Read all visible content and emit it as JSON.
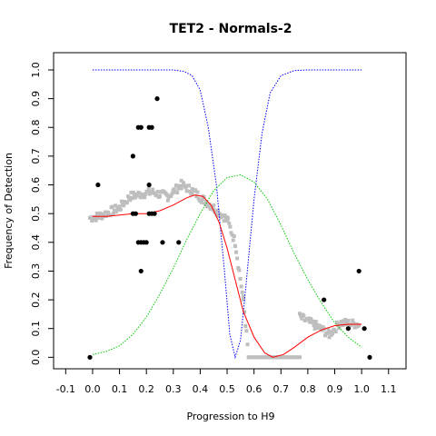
{
  "chart_data": {
    "type": "scatter",
    "title": "TET2 - Normals-2",
    "xlabel": "Progression to H9",
    "ylabel": "Frequency of Detection",
    "xlim": [
      -0.145,
      1.165
    ],
    "ylim": [
      -0.04,
      1.06
    ],
    "x_ticks": [
      -0.1,
      0.0,
      0.1,
      0.2,
      0.3,
      0.4,
      0.5,
      0.6,
      0.7,
      0.8,
      0.9,
      1.0,
      1.1
    ],
    "x_tick_labels": [
      "-0.1",
      "0.0",
      "0.1",
      "0.2",
      "0.3",
      "0.4",
      "0.5",
      "0.6",
      "0.7",
      "0.8",
      "0.9",
      "1.0",
      "1.1"
    ],
    "y_ticks": [
      0.0,
      0.1,
      0.2,
      0.3,
      0.4,
      0.5,
      0.6,
      0.7,
      0.8,
      0.9,
      1.0
    ],
    "y_tick_labels": [
      "0.0",
      "0.1",
      "0.2",
      "0.3",
      "0.4",
      "0.5",
      "0.6",
      "0.7",
      "0.8",
      "0.9",
      "1.0"
    ],
    "grid": false,
    "colors": {
      "black_points": "#000000",
      "gray_points": "#bebebe",
      "red_curve": "#ff0000",
      "blue_curve": "#0000ff",
      "green_curve": "#00cc00"
    },
    "black_points": [
      [
        -0.01,
        0.0
      ],
      [
        0.02,
        0.6
      ],
      [
        0.15,
        0.7
      ],
      [
        0.15,
        0.5
      ],
      [
        0.16,
        0.5
      ],
      [
        0.17,
        0.8
      ],
      [
        0.18,
        0.8
      ],
      [
        0.17,
        0.4
      ],
      [
        0.18,
        0.4
      ],
      [
        0.19,
        0.4
      ],
      [
        0.2,
        0.4
      ],
      [
        0.18,
        0.3
      ],
      [
        0.21,
        0.8
      ],
      [
        0.22,
        0.8
      ],
      [
        0.21,
        0.6
      ],
      [
        0.21,
        0.5
      ],
      [
        0.22,
        0.5
      ],
      [
        0.23,
        0.5
      ],
      [
        0.24,
        0.9
      ],
      [
        0.26,
        0.4
      ],
      [
        0.32,
        0.4
      ],
      [
        0.86,
        0.2
      ],
      [
        0.95,
        0.1
      ],
      [
        0.99,
        0.3
      ],
      [
        1.01,
        0.1
      ],
      [
        1.03,
        0.0
      ]
    ],
    "gray_segments": [
      {
        "x0": -0.01,
        "x1": 0.02,
        "y0": 0.485,
        "y1": 0.49
      },
      {
        "x0": 0.02,
        "x1": 0.1,
        "y0": 0.49,
        "y1": 0.52
      },
      {
        "x0": 0.1,
        "x1": 0.14,
        "y0": 0.52,
        "y1": 0.56
      },
      {
        "x0": 0.14,
        "x1": 0.22,
        "y0": 0.56,
        "y1": 0.575
      },
      {
        "x0": 0.22,
        "x1": 0.28,
        "y0": 0.575,
        "y1": 0.56
      },
      {
        "x0": 0.28,
        "x1": 0.33,
        "y0": 0.56,
        "y1": 0.6
      },
      {
        "x0": 0.33,
        "x1": 0.37,
        "y0": 0.6,
        "y1": 0.58
      },
      {
        "x0": 0.37,
        "x1": 0.41,
        "y0": 0.58,
        "y1": 0.55
      },
      {
        "x0": 0.41,
        "x1": 0.45,
        "y0": 0.55,
        "y1": 0.52
      },
      {
        "x0": 0.45,
        "x1": 0.5,
        "y0": 0.52,
        "y1": 0.48
      },
      {
        "x0": 0.5,
        "x1": 0.53,
        "y0": 0.48,
        "y1": 0.4
      },
      {
        "x0": 0.53,
        "x1": 0.56,
        "y0": 0.4,
        "y1": 0.2
      },
      {
        "x0": 0.56,
        "x1": 0.58,
        "y0": 0.2,
        "y1": 0.0
      },
      {
        "x0": 0.58,
        "x1": 0.77,
        "y0": 0.0,
        "y1": 0.0
      },
      {
        "x0": 0.77,
        "x1": 0.83,
        "y0": 0.14,
        "y1": 0.11
      },
      {
        "x0": 0.83,
        "x1": 0.88,
        "y0": 0.11,
        "y1": 0.08
      },
      {
        "x0": 0.88,
        "x1": 0.92,
        "y0": 0.08,
        "y1": 0.12
      },
      {
        "x0": 0.92,
        "x1": 0.99,
        "y0": 0.12,
        "y1": 0.115
      }
    ],
    "red_curve": [
      [
        0.0,
        0.49
      ],
      [
        0.05,
        0.49
      ],
      [
        0.1,
        0.495
      ],
      [
        0.15,
        0.5
      ],
      [
        0.2,
        0.5
      ],
      [
        0.25,
        0.51
      ],
      [
        0.3,
        0.53
      ],
      [
        0.35,
        0.555
      ],
      [
        0.38,
        0.565
      ],
      [
        0.41,
        0.56
      ],
      [
        0.44,
        0.53
      ],
      [
        0.47,
        0.47
      ],
      [
        0.5,
        0.38
      ],
      [
        0.53,
        0.27
      ],
      [
        0.56,
        0.16
      ],
      [
        0.6,
        0.07
      ],
      [
        0.64,
        0.015
      ],
      [
        0.67,
        0.0
      ],
      [
        0.71,
        0.01
      ],
      [
        0.75,
        0.035
      ],
      [
        0.8,
        0.07
      ],
      [
        0.85,
        0.095
      ],
      [
        0.9,
        0.11
      ],
      [
        0.95,
        0.115
      ],
      [
        1.0,
        0.115
      ]
    ],
    "blue_curve": [
      [
        0.0,
        1.0
      ],
      [
        0.1,
        1.0
      ],
      [
        0.2,
        1.0
      ],
      [
        0.3,
        1.0
      ],
      [
        0.34,
        0.995
      ],
      [
        0.37,
        0.98
      ],
      [
        0.4,
        0.93
      ],
      [
        0.43,
        0.8
      ],
      [
        0.46,
        0.6
      ],
      [
        0.49,
        0.3
      ],
      [
        0.51,
        0.08
      ],
      [
        0.53,
        0.0
      ],
      [
        0.55,
        0.06
      ],
      [
        0.57,
        0.25
      ],
      [
        0.6,
        0.55
      ],
      [
        0.63,
        0.78
      ],
      [
        0.66,
        0.92
      ],
      [
        0.7,
        0.98
      ],
      [
        0.75,
        0.998
      ],
      [
        0.8,
        1.0
      ],
      [
        0.9,
        1.0
      ],
      [
        1.0,
        1.0
      ]
    ],
    "green_curve": [
      [
        0.0,
        0.01
      ],
      [
        0.05,
        0.02
      ],
      [
        0.1,
        0.04
      ],
      [
        0.15,
        0.08
      ],
      [
        0.2,
        0.14
      ],
      [
        0.25,
        0.22
      ],
      [
        0.3,
        0.31
      ],
      [
        0.35,
        0.41
      ],
      [
        0.4,
        0.5
      ],
      [
        0.45,
        0.58
      ],
      [
        0.5,
        0.625
      ],
      [
        0.55,
        0.635
      ],
      [
        0.6,
        0.61
      ],
      [
        0.65,
        0.55
      ],
      [
        0.7,
        0.46
      ],
      [
        0.75,
        0.36
      ],
      [
        0.8,
        0.27
      ],
      [
        0.85,
        0.19
      ],
      [
        0.9,
        0.12
      ],
      [
        0.95,
        0.07
      ],
      [
        1.0,
        0.035
      ]
    ]
  }
}
